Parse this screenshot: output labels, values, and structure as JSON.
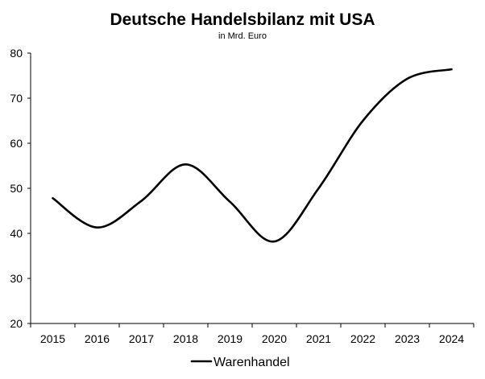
{
  "chart_data": {
    "type": "line",
    "title": "Deutsche Handelsbilanz mit USA",
    "subtitle": "in Mrd. Euro",
    "xlabel": "",
    "ylabel": "",
    "categories": [
      "2015",
      "2016",
      "2017",
      "2018",
      "2019",
      "2020",
      "2021",
      "2022",
      "2023",
      "2024"
    ],
    "ylim": [
      20,
      80
    ],
    "yticks": [
      "20",
      "30",
      "40",
      "50",
      "60",
      "70",
      "80"
    ],
    "series": [
      {
        "name": "Warenhandel",
        "values": [
          47.8,
          41.3,
          47.2,
          55.3,
          47.0,
          38.2,
          50.0,
          65.0,
          74.3,
          76.4
        ],
        "color": "#000000"
      }
    ],
    "grid": false,
    "legend": "bottom-center",
    "smooth": true
  }
}
